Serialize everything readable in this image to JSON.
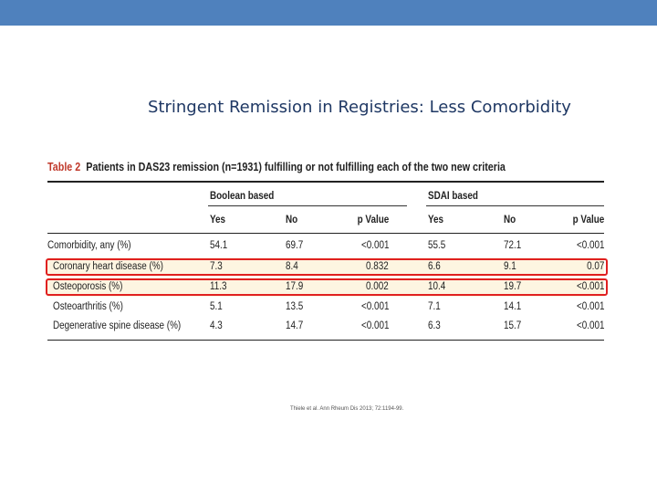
{
  "slide": {
    "title": "Stringent Remission in Registries: Less Comorbidity",
    "citation": "Thiele et al.  Ann Rheum Dis 2013; 72:1194-99."
  },
  "colors": {
    "top_bar": "#4f81bd",
    "highlight": "#e02020",
    "table_label": "#c0392b"
  },
  "table": {
    "label": "Table 2",
    "caption": "Patients in DAS23 remission (n=1931) fulfilling or not fulfilling each of the two new criteria",
    "groups": [
      "Boolean based",
      "SDAI based"
    ],
    "columns": [
      "Yes",
      "No",
      "p Value",
      "Yes",
      "No",
      "p Value"
    ],
    "rows": [
      {
        "label": "Comorbidity, any (%)",
        "values": [
          "54.1",
          "69.7",
          "<0.001",
          "55.5",
          "72.1",
          "<0.001"
        ]
      },
      {
        "label": "Coronary heart disease (%)",
        "values": [
          "7.3",
          "8.4",
          "0.832",
          "6.6",
          "9.1",
          "0.07"
        ]
      },
      {
        "label": "Osteoporosis (%)",
        "values": [
          "11.3",
          "17.9",
          "0.002",
          "10.4",
          "19.7",
          "<0.001"
        ]
      },
      {
        "label": "Osteoarthritis (%)",
        "values": [
          "5.1",
          "13.5",
          "<0.001",
          "7.1",
          "14.1",
          "<0.001"
        ]
      },
      {
        "label": "Degenerative spine disease (%)",
        "values": [
          "4.3",
          "14.7",
          "<0.001",
          "6.3",
          "15.7",
          "<0.001"
        ]
      }
    ],
    "highlighted_rows": [
      "Coronary heart disease (%)",
      "Osteoporosis (%)"
    ]
  }
}
